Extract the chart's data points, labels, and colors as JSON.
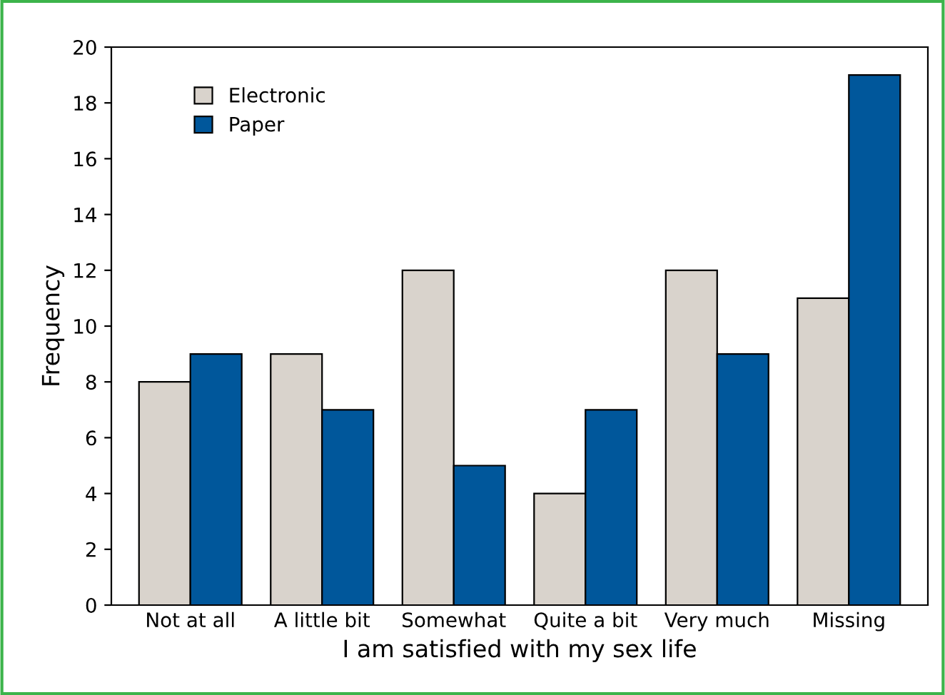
{
  "chart_data": {
    "type": "bar",
    "xlabel": "I am satisfied with my sex life",
    "ylabel": "Frequency",
    "categories": [
      "Not at all",
      "A little bit",
      "Somewhat",
      "Quite a bit",
      "Very much",
      "Missing"
    ],
    "series": [
      {
        "name": "Electronic",
        "color": "#d9d3cc",
        "values": [
          8,
          9,
          12,
          4,
          12,
          11
        ]
      },
      {
        "name": "Paper",
        "color": "#00579b",
        "values": [
          9,
          7,
          5,
          7,
          9,
          19
        ]
      }
    ],
    "ylim": [
      0,
      20
    ],
    "yticks": [
      0,
      2,
      4,
      6,
      8,
      10,
      12,
      14,
      16,
      18,
      20
    ],
    "grid": false,
    "legend": "top left"
  }
}
